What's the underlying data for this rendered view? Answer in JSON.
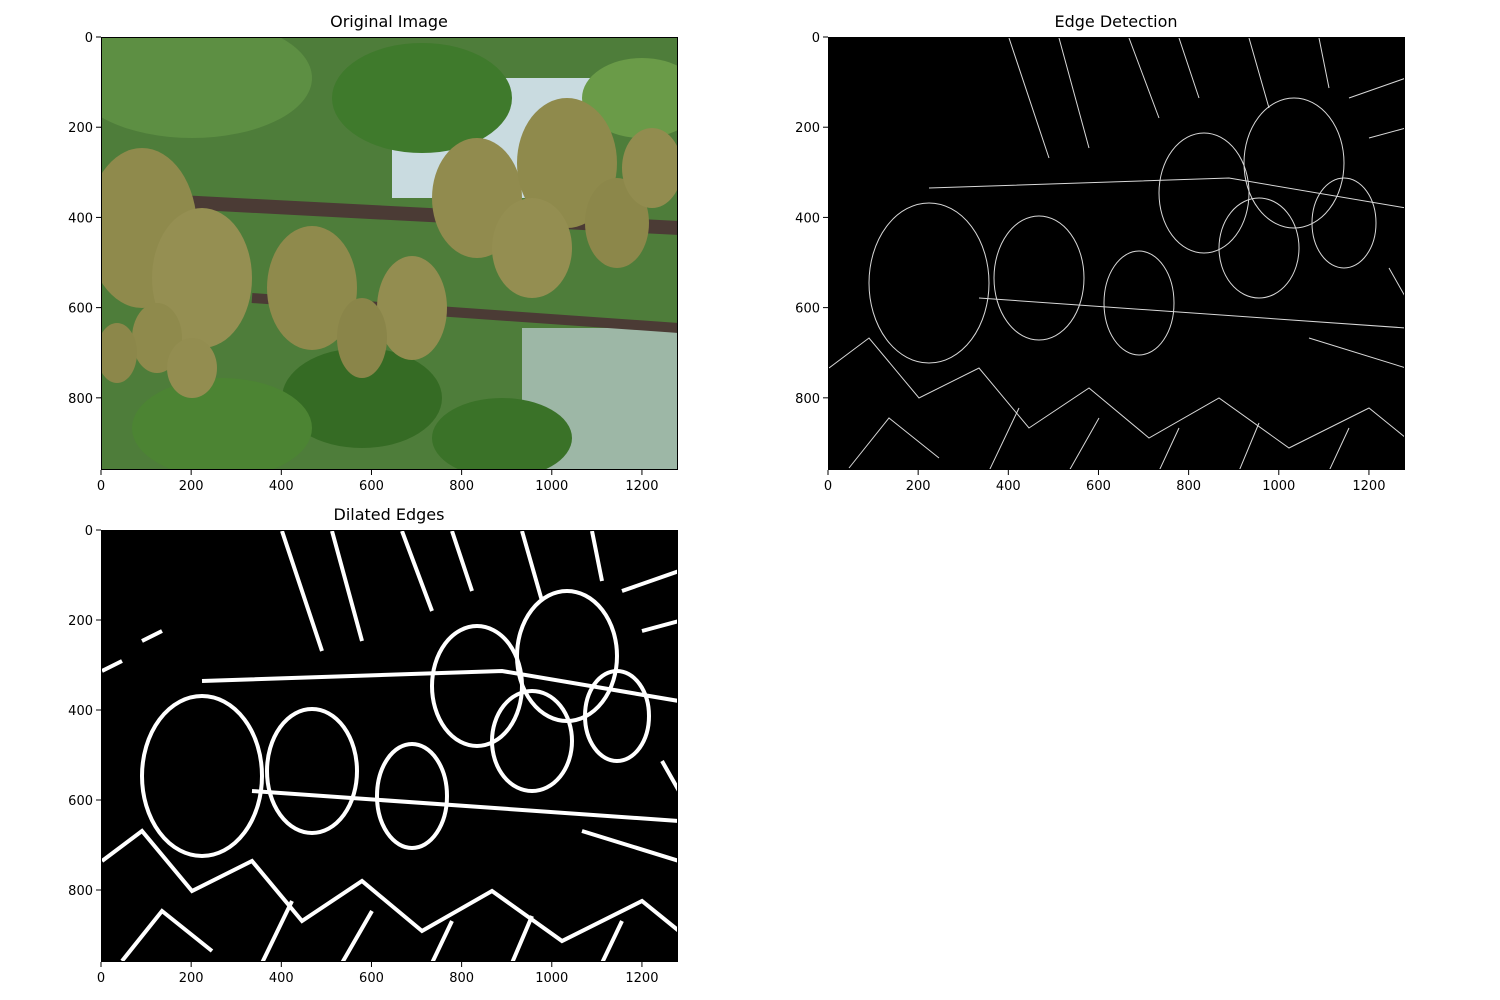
{
  "panels": [
    {
      "id": "original",
      "title": "Original Image",
      "x_ticks": [
        "0",
        "200",
        "400",
        "600",
        "800",
        "1000",
        "1200"
      ],
      "y_ticks": [
        "0",
        "200",
        "400",
        "600",
        "800"
      ],
      "image_kind": "photo"
    },
    {
      "id": "edges",
      "title": "Edge Detection",
      "x_ticks": [
        "0",
        "200",
        "400",
        "600",
        "800",
        "1000",
        "1200"
      ],
      "y_ticks": [
        "0",
        "200",
        "400",
        "600",
        "800"
      ],
      "image_kind": "thin-edges"
    },
    {
      "id": "dilated",
      "title": "Dilated Edges",
      "x_ticks": [
        "0",
        "200",
        "400",
        "600",
        "800",
        "1000",
        "1200"
      ],
      "y_ticks": [
        "0",
        "200",
        "400",
        "600",
        "800"
      ],
      "image_kind": "thick-edges"
    }
  ],
  "image_size": {
    "width": 1280,
    "height": 960
  },
  "colors": {
    "kiwi": "#8f8a4c",
    "leaf": "#3f7a2c",
    "sky": "#c9dbe0",
    "branch": "#4b3b35",
    "edge_background": "#000000",
    "edge_line": "#ffffff"
  }
}
